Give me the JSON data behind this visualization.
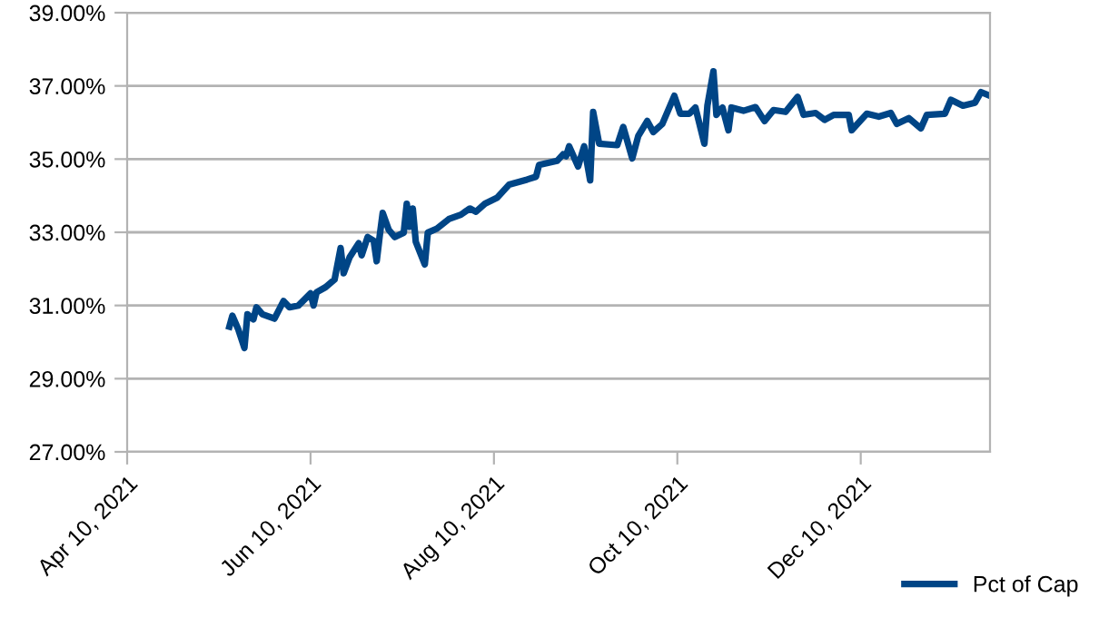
{
  "chart_data": {
    "type": "line",
    "x": [
      "2021-05-14",
      "2021-05-15",
      "2021-05-17",
      "2021-05-19",
      "2021-05-20",
      "2021-05-22",
      "2021-05-23",
      "2021-05-25",
      "2021-05-29",
      "2021-06-01",
      "2021-06-03",
      "2021-06-06",
      "2021-06-10",
      "2021-06-11",
      "2021-06-12",
      "2021-06-15",
      "2021-06-18",
      "2021-06-20",
      "2021-06-21",
      "2021-06-23",
      "2021-06-26",
      "2021-06-27",
      "2021-06-29",
      "2021-07-01",
      "2021-07-02",
      "2021-07-03",
      "2021-07-04",
      "2021-07-06",
      "2021-07-08",
      "2021-07-11",
      "2021-07-12",
      "2021-07-13",
      "2021-07-14",
      "2021-07-15",
      "2021-07-18",
      "2021-07-19",
      "2021-07-22",
      "2021-07-26",
      "2021-07-30",
      "2021-08-02",
      "2021-08-04",
      "2021-08-07",
      "2021-08-11",
      "2021-08-15",
      "2021-08-21",
      "2021-08-24",
      "2021-08-25",
      "2021-08-31",
      "2021-09-02",
      "2021-09-03",
      "2021-09-04",
      "2021-09-07",
      "2021-09-09",
      "2021-09-11",
      "2021-09-12",
      "2021-09-14",
      "2021-09-20",
      "2021-09-22",
      "2021-09-25",
      "2021-09-27",
      "2021-09-30",
      "2021-10-02",
      "2021-10-05",
      "2021-10-09",
      "2021-10-11",
      "2021-10-14",
      "2021-10-16",
      "2021-10-19",
      "2021-10-20",
      "2021-10-22",
      "2021-10-23",
      "2021-10-25",
      "2021-10-27",
      "2021-10-28",
      "2021-11-01",
      "2021-11-05",
      "2021-11-08",
      "2021-11-11",
      "2021-11-15",
      "2021-11-19",
      "2021-11-21",
      "2021-11-25",
      "2021-11-28",
      "2021-12-01",
      "2021-12-06",
      "2021-12-07",
      "2021-12-12",
      "2021-12-16",
      "2021-12-20",
      "2021-12-22",
      "2021-12-26",
      "2021-12-30",
      "2022-01-01",
      "2022-01-07",
      "2022-01-09",
      "2022-01-13",
      "2022-01-17",
      "2022-01-19",
      "2022-01-22"
    ],
    "series": [
      {
        "name": "Pct of Cap",
        "color": "#004586",
        "values": [
          30.42,
          30.72,
          30.34,
          29.84,
          30.76,
          30.62,
          30.95,
          30.76,
          30.64,
          31.12,
          30.95,
          31.0,
          31.33,
          31.0,
          31.36,
          31.5,
          31.71,
          32.57,
          31.88,
          32.32,
          32.7,
          32.37,
          32.87,
          32.77,
          32.21,
          32.9,
          33.53,
          33.07,
          32.87,
          32.99,
          33.78,
          33.15,
          33.65,
          32.74,
          32.12,
          32.99,
          33.1,
          33.36,
          33.48,
          33.65,
          33.56,
          33.78,
          33.94,
          34.3,
          34.44,
          34.52,
          34.84,
          34.95,
          35.13,
          35.08,
          35.35,
          34.8,
          35.35,
          34.42,
          36.29,
          35.42,
          35.38,
          35.88,
          35.02,
          35.63,
          36.04,
          35.74,
          35.96,
          36.73,
          36.24,
          36.24,
          36.41,
          35.42,
          36.46,
          37.4,
          36.21,
          36.41,
          35.79,
          36.41,
          36.32,
          36.42,
          36.04,
          36.34,
          36.29,
          36.7,
          36.21,
          36.26,
          36.07,
          36.21,
          36.21,
          35.79,
          36.24,
          36.16,
          36.26,
          35.96,
          36.12,
          35.84,
          36.21,
          36.24,
          36.62,
          36.46,
          36.54,
          36.83,
          36.73
        ]
      }
    ],
    "xlim": [
      "2021-04-10",
      "2022-01-22"
    ],
    "xticks": [
      {
        "value": "2021-04-10",
        "label": "Apr 10, 2021"
      },
      {
        "value": "2021-06-10",
        "label": "Jun 10, 2021"
      },
      {
        "value": "2021-08-10",
        "label": "Aug 10, 2021"
      },
      {
        "value": "2021-10-10",
        "label": "Oct 10, 2021"
      },
      {
        "value": "2021-12-10",
        "label": "Dec 10, 2021"
      }
    ],
    "ylim": [
      27,
      39
    ],
    "yticks": [
      {
        "value": 27,
        "label": "27.00%"
      },
      {
        "value": 29,
        "label": "29.00%"
      },
      {
        "value": 31,
        "label": "31.00%"
      },
      {
        "value": 33,
        "label": "33.00%"
      },
      {
        "value": 35,
        "label": "35.00%"
      },
      {
        "value": 37,
        "label": "37.00%"
      },
      {
        "value": 39,
        "label": "39.00%"
      }
    ],
    "grid": "y",
    "legend": "bottom right",
    "marker": "none",
    "line_style": "solid"
  }
}
